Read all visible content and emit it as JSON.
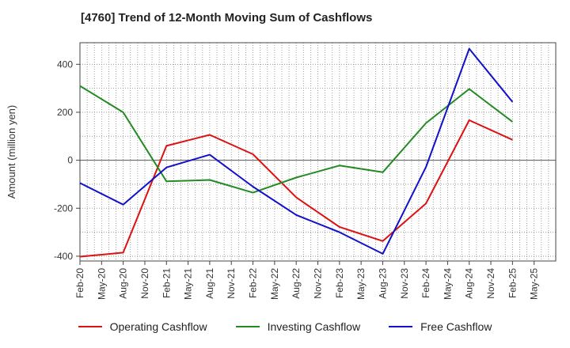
{
  "chart_data": {
    "type": "line",
    "title": "[4760]  Trend of 12-Month Moving Sum of Cashflows",
    "ylabel": "Amount (million yen)",
    "xlabel": "",
    "ylim": [
      -420,
      490
    ],
    "yticks": [
      -400,
      -200,
      0,
      200,
      400
    ],
    "xtick_labels": [
      "Feb-20",
      "May-20",
      "Aug-20",
      "Nov-20",
      "Feb-21",
      "May-21",
      "Aug-21",
      "Nov-21",
      "Feb-22",
      "May-22",
      "Aug-22",
      "Nov-22",
      "Feb-23",
      "May-23",
      "Aug-23",
      "Nov-23",
      "Feb-24",
      "May-24",
      "Aug-24",
      "Nov-24",
      "Feb-25",
      "May-25"
    ],
    "grid": true,
    "legend_position": "bottom",
    "x": [
      "Feb-20",
      "Aug-20",
      "Feb-21",
      "Aug-21",
      "Feb-22",
      "Aug-22",
      "Feb-23",
      "Aug-23",
      "Feb-24",
      "Aug-24",
      "Feb-25"
    ],
    "series": [
      {
        "name": "Operating Cashflow",
        "color": "#dd1111",
        "values": [
          -402,
          -385,
          60,
          106,
          25,
          -155,
          -278,
          -337,
          -180,
          167,
          85
        ]
      },
      {
        "name": "Investing Cashflow",
        "color": "#228b22",
        "values": [
          310,
          200,
          -88,
          -82,
          -135,
          -72,
          -22,
          -50,
          155,
          297,
          160
        ]
      },
      {
        "name": "Free Cashflow",
        "color": "#1111cc",
        "values": [
          -95,
          -185,
          -30,
          23,
          -110,
          -228,
          -300,
          -390,
          -28,
          465,
          243
        ]
      }
    ]
  }
}
